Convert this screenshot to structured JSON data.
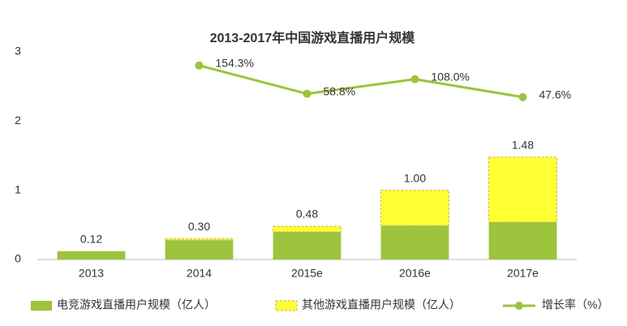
{
  "chart_data": {
    "type": "bar",
    "title": "2013-2017年中国游戏直播用户规模",
    "categories": [
      "2013",
      "2014",
      "2015e",
      "2016e",
      "2017e"
    ],
    "series": [
      {
        "name": "电竞游戏直播用户规模（亿人）",
        "color": "#9cc43c",
        "values": [
          0.12,
          0.28,
          0.4,
          0.49,
          0.54
        ]
      },
      {
        "name": "其他游戏直播用户规模（亿人）",
        "color": "#ffff33",
        "values": [
          null,
          0.02,
          0.08,
          0.51,
          0.94
        ]
      },
      {
        "name": "增长率（%）",
        "color": "#9cc43c",
        "type": "line",
        "axis": "y2",
        "values": [
          null,
          154.3,
          58.8,
          108.0,
          47.6
        ],
        "value_labels": [
          null,
          "154.3%",
          "58.8%",
          "108.0%",
          "47.6%"
        ]
      }
    ],
    "total_labels": [
      "0.12",
      "0.30",
      "0.48",
      "1.00",
      "1.48"
    ],
    "ylim": [
      0,
      3
    ],
    "yticks": [
      0,
      1,
      2,
      3
    ],
    "y2lim": [
      -500,
      200
    ],
    "grid": false,
    "legend": "bottom"
  }
}
